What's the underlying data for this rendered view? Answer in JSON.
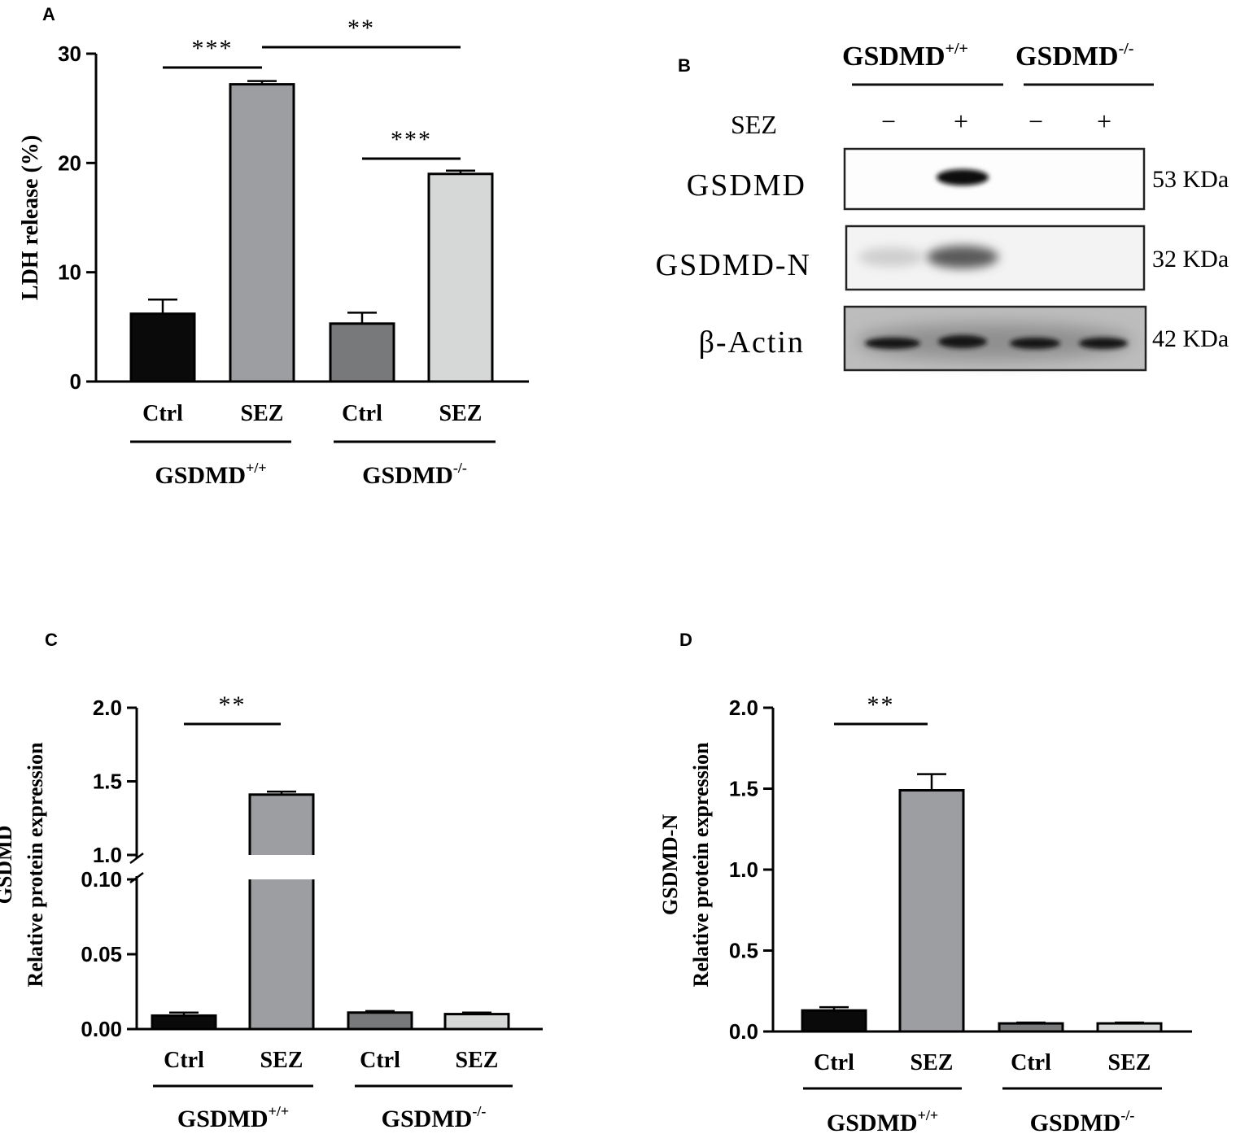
{
  "panels": {
    "A": "A",
    "B": "B",
    "C": "C",
    "D": "D"
  },
  "colors": {
    "ctrl_wt": "#0a0a0a",
    "sez_wt": "#9d9ea2",
    "ctrl_ko": "#77797b",
    "sez_ko": "#d6d8d8"
  },
  "chart_data": [
    {
      "panel": "A",
      "type": "bar",
      "categories": [
        "Ctrl",
        "SEZ",
        "Ctrl",
        "SEZ"
      ],
      "values": [
        6.2,
        27.2,
        5.3,
        19.0
      ],
      "errors": [
        1.3,
        0.3,
        1.0,
        0.3
      ],
      "ylabel": "LDH release (%)",
      "ylim": [
        0,
        30
      ],
      "yticks": [
        "0",
        "10",
        "20",
        "30"
      ],
      "groups": [
        {
          "label": "GSDMD",
          "sup": "+/+"
        },
        {
          "label": "GSDMD",
          "sup": "-/-"
        }
      ],
      "significance": [
        {
          "from": 0,
          "to": 1,
          "label": "***"
        },
        {
          "from": 1,
          "to": 3,
          "label": "**"
        },
        {
          "from": 2,
          "to": 3,
          "label": "***"
        }
      ]
    },
    {
      "panel": "C",
      "type": "bar",
      "categories": [
        "Ctrl",
        "SEZ",
        "Ctrl",
        "SEZ"
      ],
      "values": [
        0.009,
        1.41,
        0.011,
        0.01
      ],
      "errors": [
        0.002,
        0.02,
        0.001,
        0.001
      ],
      "ylabel_top": "GSDMD",
      "ylabel_bottom": "Relative protein expression",
      "axis_break": {
        "lower_range": [
          0,
          0.1
        ],
        "upper_range": [
          1.0,
          2.0
        ]
      },
      "yticks_lower": [
        "0.00",
        "0.05",
        "0.10"
      ],
      "yticks_upper": [
        "1.0",
        "1.5",
        "2.0"
      ],
      "groups": [
        {
          "label": "GSDMD",
          "sup": "+/+"
        },
        {
          "label": "GSDMD",
          "sup": "-/-"
        }
      ],
      "significance": [
        {
          "from": 0,
          "to": 1,
          "label": "**"
        }
      ]
    },
    {
      "panel": "D",
      "type": "bar",
      "categories": [
        "Ctrl",
        "SEZ",
        "Ctrl",
        "SEZ"
      ],
      "values": [
        0.13,
        1.49,
        0.05,
        0.05
      ],
      "errors": [
        0.02,
        0.1,
        0.005,
        0.005
      ],
      "ylabel_top": "GSDMD-N",
      "ylabel_bottom": "Relative protein expression",
      "ylim": [
        0,
        2.0
      ],
      "yticks": [
        "0.0",
        "0.5",
        "1.0",
        "1.5",
        "2.0"
      ],
      "groups": [
        {
          "label": "GSDMD",
          "sup": "+/+"
        },
        {
          "label": "GSDMD",
          "sup": "-/-"
        }
      ],
      "significance": [
        {
          "from": 0,
          "to": 1,
          "label": "**"
        }
      ]
    }
  ],
  "blot": {
    "headers": [
      {
        "label": "GSDMD",
        "sup": "+/+"
      },
      {
        "label": "GSDMD",
        "sup": "-/-"
      }
    ],
    "treatment_label": "SEZ",
    "treatment": [
      "−",
      "+",
      "−",
      "+"
    ],
    "rows": [
      {
        "label": "GSDMD",
        "mw": "53 KDa"
      },
      {
        "label": "GSDMD-N",
        "mw": "32 KDa"
      },
      {
        "label": "β-Actin",
        "mw": "42 KDa"
      }
    ]
  }
}
